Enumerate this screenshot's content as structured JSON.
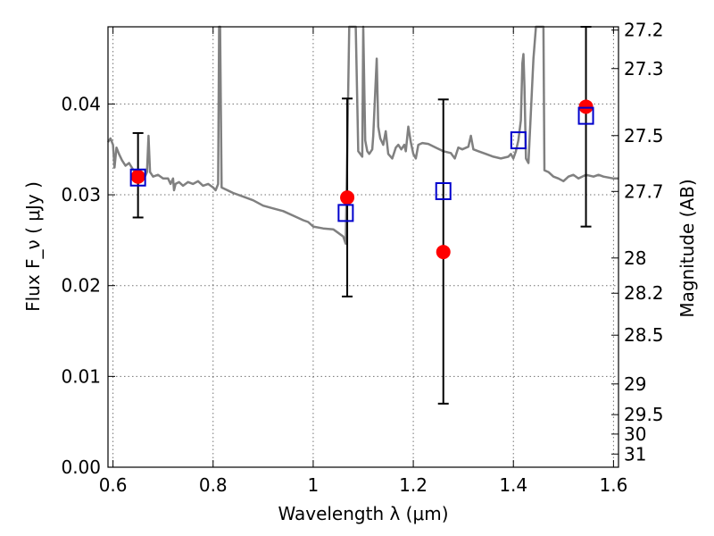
{
  "chart_data": {
    "type": "scatter",
    "title": "",
    "xlabel": "Wavelength  λ (μm)",
    "ylabel": "Flux  F_ν  ( μJy )",
    "ylabel_right": "Magnitude (AB)",
    "xlim": [
      0.59,
      1.61
    ],
    "ylim": [
      0.0,
      0.0485
    ],
    "grid": true,
    "x_ticks": [
      0.6,
      0.8,
      1.0,
      1.2,
      1.4,
      1.6
    ],
    "x_tick_labels": [
      "0.6",
      "0.8",
      "1",
      "1.2",
      "1.4",
      "1.6"
    ],
    "y_ticks": [
      0.0,
      0.01,
      0.02,
      0.03,
      0.04
    ],
    "y_tick_labels": [
      "0.00",
      "0.01",
      "0.02",
      "0.03",
      "0.04"
    ],
    "right_ticks": [
      {
        "label": "27.2",
        "flux": 0.04814
      },
      {
        "label": "27.3",
        "flux": 0.0439
      },
      {
        "label": "27.5",
        "flux": 0.03652
      },
      {
        "label": "27.7",
        "flux": 0.03037
      },
      {
        "label": "28",
        "flux": 0.02304
      },
      {
        "label": "28.2",
        "flux": 0.01916
      },
      {
        "label": "28.5",
        "flux": 0.01454
      },
      {
        "label": "29",
        "flux": 0.00917
      },
      {
        "label": "29.5",
        "flux": 0.00579
      },
      {
        "label": "30",
        "flux": 0.00365
      },
      {
        "label": "31",
        "flux": 0.00145
      }
    ],
    "model_spectrum": {
      "color": "#808080",
      "points": [
        [
          0.59,
          0.0358
        ],
        [
          0.595,
          0.0362
        ],
        [
          0.6,
          0.0355
        ],
        [
          0.603,
          0.033
        ],
        [
          0.607,
          0.0352
        ],
        [
          0.612,
          0.0345
        ],
        [
          0.618,
          0.0338
        ],
        [
          0.625,
          0.0332
        ],
        [
          0.632,
          0.0335
        ],
        [
          0.64,
          0.0328
        ],
        [
          0.648,
          0.0322
        ],
        [
          0.655,
          0.0325
        ],
        [
          0.662,
          0.0318
        ],
        [
          0.668,
          0.0325
        ],
        [
          0.671,
          0.0365
        ],
        [
          0.674,
          0.0325
        ],
        [
          0.68,
          0.032
        ],
        [
          0.69,
          0.0322
        ],
        [
          0.7,
          0.0318
        ],
        [
          0.71,
          0.0318
        ],
        [
          0.715,
          0.0312
        ],
        [
          0.72,
          0.0318
        ],
        [
          0.722,
          0.0305
        ],
        [
          0.725,
          0.0312
        ],
        [
          0.732,
          0.0314
        ],
        [
          0.74,
          0.031
        ],
        [
          0.75,
          0.0314
        ],
        [
          0.76,
          0.0312
        ],
        [
          0.77,
          0.0315
        ],
        [
          0.78,
          0.031
        ],
        [
          0.79,
          0.0312
        ],
        [
          0.8,
          0.0308
        ],
        [
          0.805,
          0.0305
        ],
        [
          0.81,
          0.0312
        ],
        [
          0.812,
          0.049
        ],
        [
          0.814,
          0.049
        ],
        [
          0.817,
          0.0308
        ],
        [
          0.825,
          0.0306
        ],
        [
          0.84,
          0.0302
        ],
        [
          0.86,
          0.0298
        ],
        [
          0.88,
          0.0294
        ],
        [
          0.9,
          0.0288
        ],
        [
          0.92,
          0.0285
        ],
        [
          0.94,
          0.0282
        ],
        [
          0.96,
          0.0277
        ],
        [
          0.98,
          0.0272
        ],
        [
          0.99,
          0.027
        ],
        [
          1.0,
          0.0265
        ],
        [
          1.02,
          0.0263
        ],
        [
          1.04,
          0.0262
        ],
        [
          1.05,
          0.0258
        ],
        [
          1.06,
          0.0254
        ],
        [
          1.065,
          0.0246
        ],
        [
          1.072,
          0.049
        ],
        [
          1.085,
          0.049
        ],
        [
          1.09,
          0.0348
        ],
        [
          1.098,
          0.0342
        ],
        [
          1.1,
          0.049
        ],
        [
          1.104,
          0.036
        ],
        [
          1.108,
          0.0348
        ],
        [
          1.112,
          0.0345
        ],
        [
          1.118,
          0.035
        ],
        [
          1.12,
          0.0365
        ],
        [
          1.127,
          0.045
        ],
        [
          1.13,
          0.0375
        ],
        [
          1.134,
          0.0362
        ],
        [
          1.14,
          0.0355
        ],
        [
          1.145,
          0.037
        ],
        [
          1.15,
          0.0345
        ],
        [
          1.158,
          0.034
        ],
        [
          1.165,
          0.0352
        ],
        [
          1.17,
          0.0355
        ],
        [
          1.176,
          0.035
        ],
        [
          1.182,
          0.0355
        ],
        [
          1.185,
          0.0348
        ],
        [
          1.19,
          0.0375
        ],
        [
          1.195,
          0.0358
        ],
        [
          1.2,
          0.0345
        ],
        [
          1.205,
          0.034
        ],
        [
          1.21,
          0.0355
        ],
        [
          1.218,
          0.0357
        ],
        [
          1.23,
          0.0356
        ],
        [
          1.245,
          0.0352
        ],
        [
          1.26,
          0.0348
        ],
        [
          1.275,
          0.0346
        ],
        [
          1.283,
          0.034
        ],
        [
          1.29,
          0.0352
        ],
        [
          1.298,
          0.035
        ],
        [
          1.31,
          0.0353
        ],
        [
          1.315,
          0.0365
        ],
        [
          1.32,
          0.035
        ],
        [
          1.33,
          0.0348
        ],
        [
          1.345,
          0.0345
        ],
        [
          1.36,
          0.0342
        ],
        [
          1.375,
          0.034
        ],
        [
          1.39,
          0.0342
        ],
        [
          1.395,
          0.0345
        ],
        [
          1.4,
          0.034
        ],
        [
          1.405,
          0.0348
        ],
        [
          1.41,
          0.036
        ],
        [
          1.415,
          0.0382
        ],
        [
          1.418,
          0.0445
        ],
        [
          1.42,
          0.0455
        ],
        [
          1.422,
          0.042
        ],
        [
          1.425,
          0.034
        ],
        [
          1.43,
          0.0335
        ],
        [
          1.44,
          0.045
        ],
        [
          1.445,
          0.049
        ],
        [
          1.46,
          0.049
        ],
        [
          1.462,
          0.0327
        ],
        [
          1.47,
          0.0325
        ],
        [
          1.48,
          0.032
        ],
        [
          1.49,
          0.0318
        ],
        [
          1.5,
          0.0315
        ],
        [
          1.51,
          0.032
        ],
        [
          1.52,
          0.0322
        ],
        [
          1.53,
          0.0318
        ],
        [
          1.545,
          0.0322
        ],
        [
          1.56,
          0.032
        ],
        [
          1.57,
          0.0322
        ],
        [
          1.58,
          0.032
        ],
        [
          1.6,
          0.0318
        ],
        [
          1.61,
          0.0318
        ]
      ]
    },
    "series": [
      {
        "marker": "circle",
        "color": "#ff0000",
        "points": [
          {
            "x": 0.65,
            "y": 0.032,
            "yerr_low": 0.0275,
            "yerr_high": 0.0368
          },
          {
            "x": 1.068,
            "y": 0.0297,
            "yerr_low": 0.0188,
            "yerr_high": 0.0406
          },
          {
            "x": 1.26,
            "y": 0.0237,
            "yerr_low": 0.007,
            "yerr_high": 0.0405
          },
          {
            "x": 1.545,
            "y": 0.0397,
            "yerr_low": 0.0265,
            "yerr_high": 0.049
          }
        ]
      },
      {
        "marker": "square-open",
        "color": "#0000cc",
        "points": [
          {
            "x": 0.65,
            "y": 0.0319
          },
          {
            "x": 1.065,
            "y": 0.028
          },
          {
            "x": 1.26,
            "y": 0.0304
          },
          {
            "x": 1.41,
            "y": 0.036
          },
          {
            "x": 1.545,
            "y": 0.0387
          }
        ]
      }
    ]
  }
}
